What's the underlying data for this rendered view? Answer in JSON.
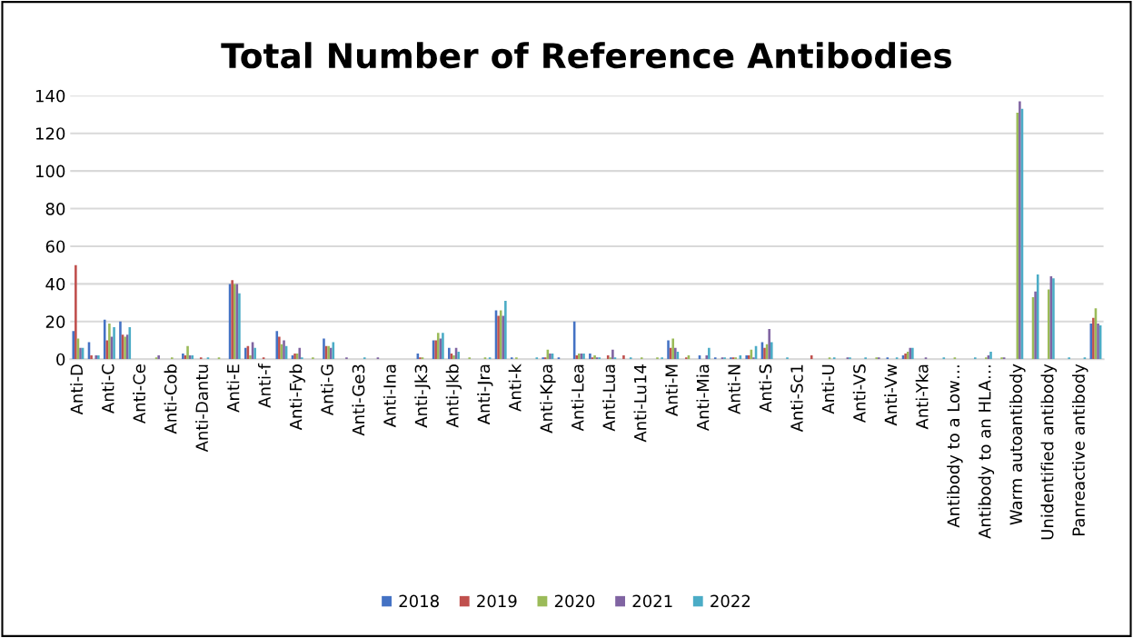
{
  "chart_data": {
    "type": "bar",
    "title": "Total Number of Reference Antibodies",
    "categories": [
      "Anti-D",
      null,
      "Anti-C",
      null,
      "Anti-Ce",
      null,
      "Anti-Cob",
      null,
      "Anti-Dantu",
      null,
      "Anti-E",
      null,
      "Anti-f",
      null,
      "Anti-Fyb",
      null,
      "Anti-G",
      null,
      "Anti-Ge3",
      null,
      "Anti-Ina",
      null,
      "Anti-Jk3",
      null,
      "Anti-Jkb",
      null,
      "Anti-Jra",
      null,
      "Anti-k",
      null,
      "Anti-Kpa",
      null,
      "Anti-Lea",
      null,
      "Anti-Lua",
      null,
      "Anti-Lu14",
      null,
      "Anti-M",
      null,
      "Anti-Mia",
      null,
      "Anti-N",
      null,
      "Anti-S",
      null,
      "Anti-Sc1",
      null,
      "Anti-U",
      null,
      "Anti-VS",
      null,
      "Anti-Vw",
      null,
      "Anti-Yka",
      null,
      "Antibody to a Low…",
      null,
      "Antibody to an HLA…",
      null,
      "Warm autoantibody",
      null,
      "Unidentified antibody",
      null,
      "Panreactive antibody",
      null
    ],
    "series": [
      {
        "name": "2018",
        "color": "#4472c4",
        "values": [
          15,
          9,
          21,
          20,
          null,
          null,
          null,
          3,
          null,
          null,
          40,
          6,
          null,
          15,
          2,
          null,
          11,
          null,
          null,
          null,
          null,
          null,
          3,
          10,
          6,
          null,
          null,
          26,
          1,
          null,
          1,
          1,
          20,
          3,
          null,
          null,
          null,
          null,
          10,
          null,
          2,
          1,
          1,
          2,
          9,
          null,
          null,
          null,
          null,
          null,
          null,
          null,
          1,
          2,
          null,
          null,
          null,
          null,
          null,
          null,
          null,
          null,
          null,
          null,
          null,
          19
        ]
      },
      {
        "name": "2019",
        "color": "#c0504d",
        "values": [
          50,
          2,
          10,
          13,
          null,
          null,
          null,
          2,
          1,
          null,
          42,
          7,
          1,
          12,
          3,
          null,
          7,
          null,
          null,
          null,
          null,
          null,
          1,
          10,
          3,
          null,
          null,
          23,
          null,
          null,
          1,
          null,
          2,
          1,
          2,
          2,
          null,
          null,
          6,
          1,
          null,
          null,
          1,
          2,
          6,
          null,
          null,
          2,
          null,
          null,
          null,
          null,
          null,
          3,
          null,
          null,
          null,
          null,
          null,
          null,
          null,
          null,
          null,
          null,
          null,
          22
        ]
      },
      {
        "name": "2020",
        "color": "#9bbb59",
        "values": [
          11,
          null,
          19,
          12,
          null,
          1,
          1,
          7,
          null,
          1,
          40,
          2,
          null,
          8,
          3,
          1,
          7,
          null,
          null,
          null,
          null,
          null,
          1,
          14,
          2,
          1,
          1,
          26,
          1,
          null,
          5,
          null,
          3,
          2,
          1,
          null,
          1,
          1,
          11,
          2,
          null,
          null,
          1,
          5,
          8,
          null,
          null,
          null,
          1,
          null,
          null,
          1,
          null,
          4,
          null,
          null,
          1,
          null,
          1,
          1,
          131,
          33,
          37,
          null,
          null,
          27
        ]
      },
      {
        "name": "2021",
        "color": "#8064a2",
        "values": [
          6,
          2,
          12,
          13,
          null,
          2,
          null,
          2,
          null,
          null,
          40,
          9,
          null,
          10,
          6,
          null,
          6,
          1,
          null,
          1,
          null,
          null,
          null,
          11,
          6,
          null,
          null,
          23,
          null,
          null,
          3,
          null,
          3,
          1,
          5,
          null,
          null,
          null,
          6,
          null,
          2,
          1,
          null,
          1,
          16,
          null,
          null,
          null,
          null,
          1,
          null,
          1,
          null,
          6,
          1,
          null,
          null,
          null,
          2,
          1,
          137,
          36,
          44,
          null,
          null,
          19
        ]
      },
      {
        "name": "2022",
        "color": "#4bacc6",
        "values": [
          6,
          2,
          17,
          17,
          null,
          null,
          null,
          2,
          1,
          null,
          35,
          6,
          null,
          7,
          1,
          null,
          9,
          null,
          1,
          null,
          null,
          null,
          null,
          14,
          4,
          null,
          1,
          31,
          null,
          1,
          3,
          null,
          3,
          1,
          1,
          1,
          null,
          1,
          4,
          null,
          6,
          1,
          2,
          7,
          9,
          1,
          null,
          null,
          1,
          1,
          1,
          null,
          1,
          6,
          null,
          1,
          null,
          1,
          4,
          null,
          133,
          45,
          43,
          1,
          1,
          18
        ]
      }
    ],
    "ylim": [
      0,
      140
    ],
    "yticks": [
      0,
      20,
      40,
      60,
      80,
      100,
      120,
      140
    ],
    "grid": "y",
    "legend": "bottom"
  }
}
